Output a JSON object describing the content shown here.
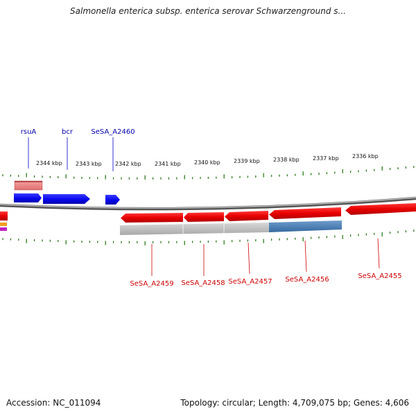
{
  "title": "Salmonella enterica subsp. enterica serovar Schwarzenground s...",
  "footer": {
    "accession_label": "Accession: NC_011094",
    "summary_label": "Topology: circular; Length: 4,709,075 bp; Genes: 4,606"
  },
  "scale": {
    "unit": "kbp",
    "ticks": [
      {
        "kbp": 2344,
        "label": "2344 kbp"
      },
      {
        "kbp": 2343,
        "label": "2343 kbp"
      },
      {
        "kbp": 2342,
        "label": "2342 kbp"
      },
      {
        "kbp": 2341,
        "label": "2341 kbp"
      },
      {
        "kbp": 2340,
        "label": "2340 kbp"
      },
      {
        "kbp": 2339,
        "label": "2339 kbp"
      },
      {
        "kbp": 2338,
        "label": "2338 kbp"
      },
      {
        "kbp": 2337,
        "label": "2337 kbp"
      },
      {
        "kbp": 2336,
        "label": "2336 kbp"
      }
    ]
  },
  "genes_forward": [
    {
      "name": "rsuA",
      "color": "#0000ee"
    },
    {
      "name": "bcr",
      "color": "#0000ee"
    },
    {
      "name": "SeSA_A2460",
      "color": "#0000ee"
    }
  ],
  "genes_reverse": [
    {
      "name": "SeSA_A2459",
      "color": "#dd0000"
    },
    {
      "name": "SeSA_A2458",
      "color": "#dd0000"
    },
    {
      "name": "SeSA_A2457",
      "color": "#dd0000"
    },
    {
      "name": "SeSA_A2456",
      "color": "#dd0000"
    },
    {
      "name": "SeSA_A2455",
      "color": "#dd0000"
    }
  ],
  "colors": {
    "forward_label": "#0000aa",
    "reverse_label": "#cc0000",
    "tick": "#2a7a1a",
    "backbone": "#888888",
    "forward_feature": "#0a0af0",
    "reverse_feature": "#e80000",
    "pink_feature": "#f08a8a",
    "grey_feature": "#b8b8b8",
    "steel_feature": "#4a7ab0"
  }
}
